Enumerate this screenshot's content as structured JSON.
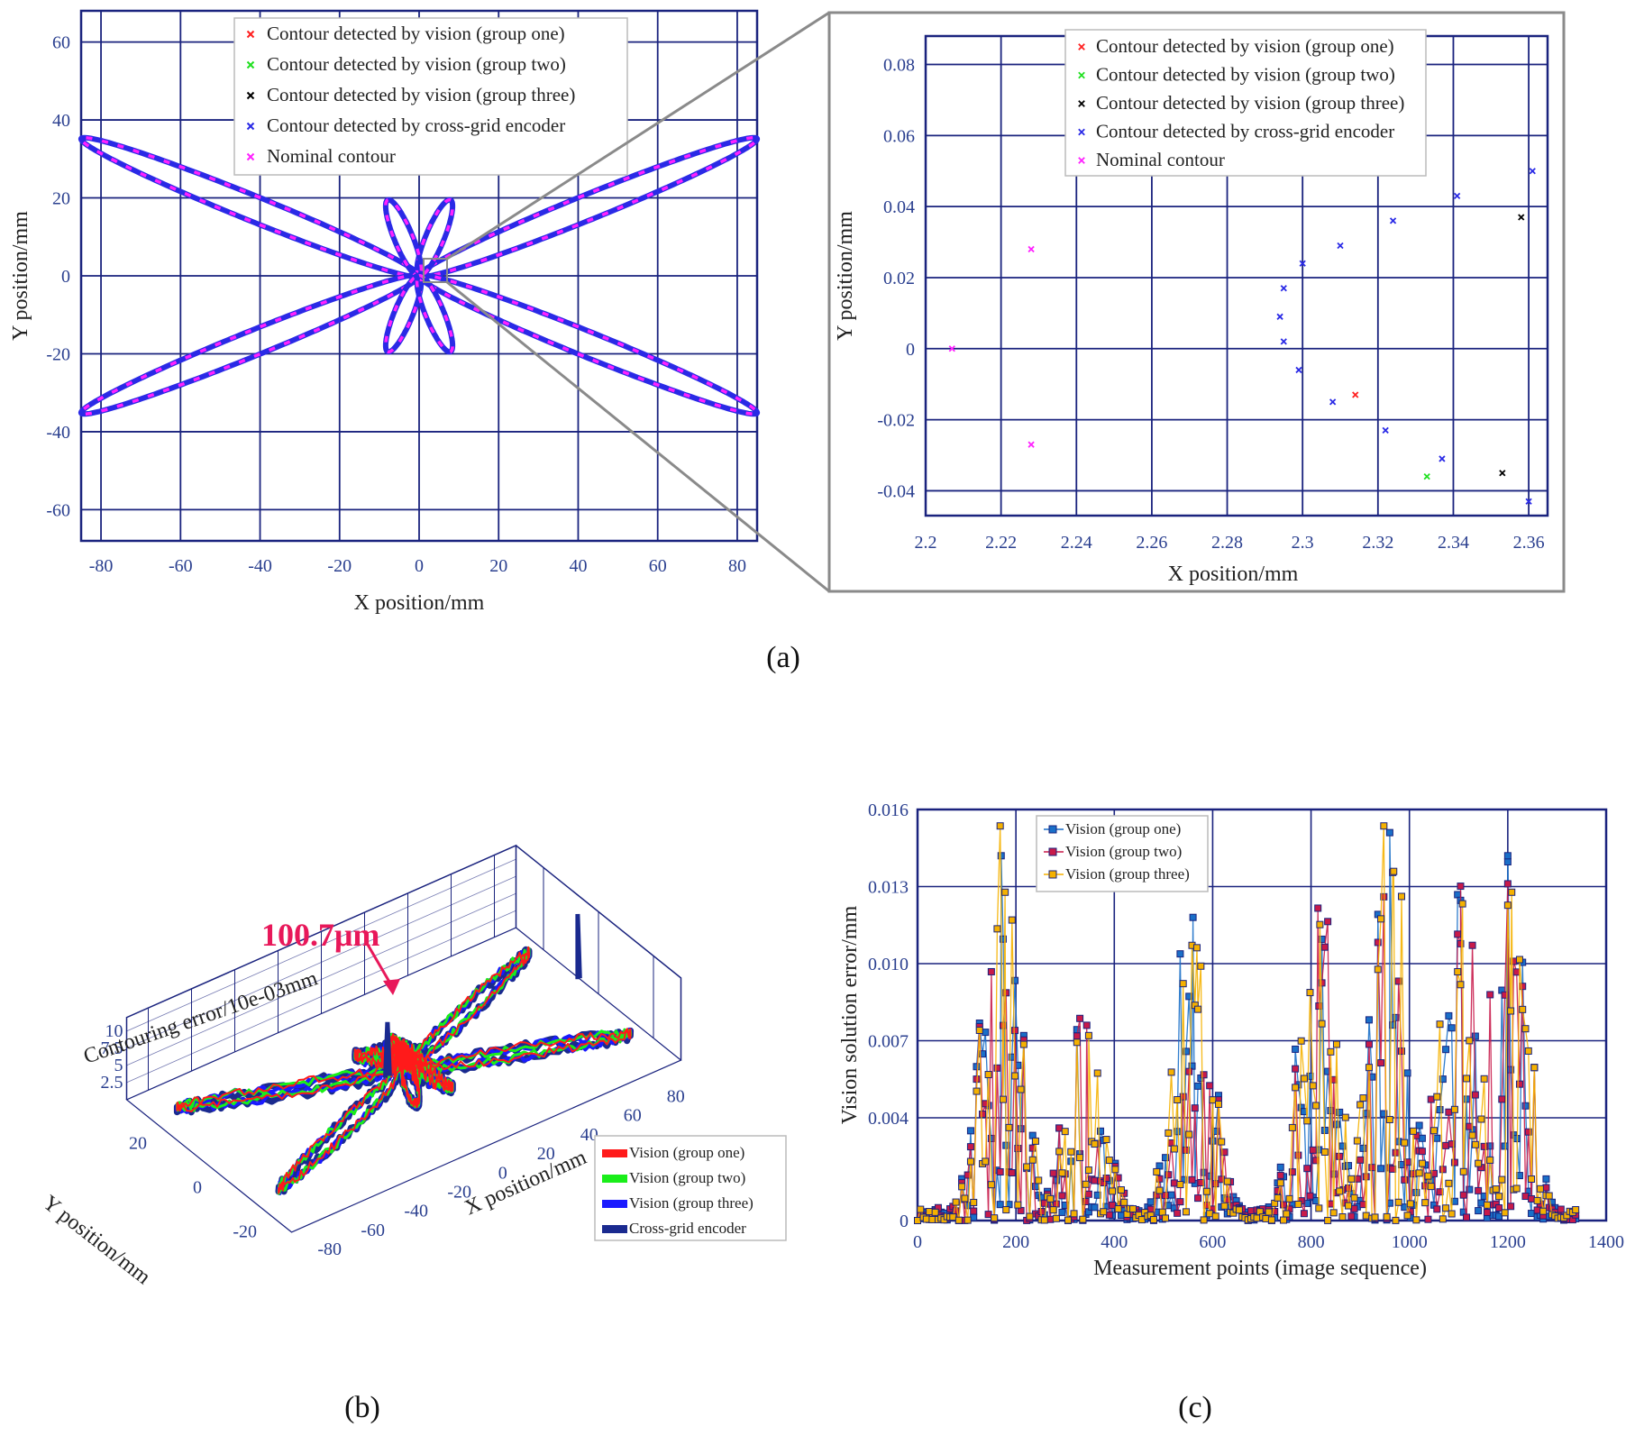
{
  "figure_labels": [
    "(a)",
    "(b)",
    "(c)"
  ],
  "chart_data": [
    {
      "id": "a-main",
      "type": "scatter",
      "title": "",
      "xlabel": "X position/mm",
      "ylabel": "Y position/mm",
      "xlim": [
        -85,
        85
      ],
      "ylim": [
        -68,
        68
      ],
      "xticks": [
        -80,
        -60,
        -40,
        -20,
        0,
        20,
        40,
        60,
        80
      ],
      "yticks": [
        -60,
        -40,
        -20,
        0,
        20,
        40,
        60
      ],
      "xtick_labels": [
        "-80",
        "-60",
        "-40",
        "-20",
        "0",
        "20",
        "40",
        "60",
        "80"
      ],
      "ytick_labels": [
        "-60",
        "-40",
        "-20",
        "0",
        "20",
        "40",
        "60"
      ],
      "grid": true,
      "legend_position": "top-center",
      "series": [
        {
          "name": "Contour detected by vision (group one)",
          "color": "#ff2020",
          "marker": "x"
        },
        {
          "name": "Contour detected by vision (group two)",
          "color": "#20e020",
          "marker": "x"
        },
        {
          "name": "Contour detected by vision (group three)",
          "color": "#000000",
          "marker": "x"
        },
        {
          "name": "Contour detected by cross-grid encoder",
          "color": "#2a2ae6",
          "marker": "x"
        },
        {
          "name": "Nominal contour",
          "color": "#ff22ff",
          "marker": "x"
        }
      ],
      "contour": {
        "description_free": true,
        "large_petals_tips_deg": [
          22.5,
          157.5,
          202.5,
          337.5
        ],
        "large_petal_length": 92,
        "small_petal_angles_deg": [
          68,
          112,
          248,
          292
        ],
        "small_petal_length": 21
      }
    },
    {
      "id": "a-zoom",
      "type": "scatter",
      "xlabel": "X position/mm",
      "ylabel": "Y position/mm",
      "xlim": [
        2.2,
        2.365
      ],
      "ylim": [
        -0.047,
        0.088
      ],
      "xticks": [
        2.2,
        2.22,
        2.24,
        2.26,
        2.28,
        2.3,
        2.32,
        2.34,
        2.36
      ],
      "yticks": [
        -0.04,
        -0.02,
        0,
        0.02,
        0.04,
        0.06,
        0.08
      ],
      "xtick_labels": [
        "2.2",
        "2.22",
        "2.24",
        "2.26",
        "2.28",
        "2.3",
        "2.32",
        "2.34",
        "2.36"
      ],
      "ytick_labels": [
        "-0.04",
        "-0.02",
        "0",
        "0.02",
        "0.04",
        "0.06",
        "0.08"
      ],
      "grid": true,
      "legend_position": "top-center",
      "series": [
        {
          "name": "Contour detected by vision (group one)",
          "color": "#ff2020",
          "points": [
            [
              2.314,
              -0.013
            ]
          ]
        },
        {
          "name": "Contour detected by vision (group two)",
          "color": "#20e020",
          "points": [
            [
              2.333,
              -0.036
            ]
          ]
        },
        {
          "name": "Contour detected by vision (group three)",
          "color": "#000000",
          "points": [
            [
              2.353,
              -0.035
            ],
            [
              2.358,
              0.037
            ]
          ]
        },
        {
          "name": "Contour detected by cross-grid encoder",
          "color": "#2a2ae6",
          "points": [
            [
              2.294,
              0.009
            ],
            [
              2.295,
              0.017
            ],
            [
              2.295,
              0.002
            ],
            [
              2.299,
              -0.006
            ],
            [
              2.3,
              0.024
            ],
            [
              2.308,
              -0.015
            ],
            [
              2.31,
              0.029
            ],
            [
              2.322,
              -0.023
            ],
            [
              2.324,
              0.036
            ],
            [
              2.337,
              -0.031
            ],
            [
              2.341,
              0.043
            ],
            [
              2.36,
              -0.043
            ],
            [
              2.361,
              0.05
            ]
          ]
        },
        {
          "name": "Nominal contour",
          "color": "#ff22ff",
          "points": [
            [
              2.207,
              0.0
            ],
            [
              2.228,
              0.028
            ],
            [
              2.228,
              -0.027
            ]
          ]
        }
      ]
    },
    {
      "id": "b-3d",
      "type": "line",
      "annotation": "100.7μm",
      "xlabel": "X position/mm",
      "ylabel": "Y position/mm",
      "zlabel": "Contouring error/10e-03mm",
      "xtick_labels": [
        "-80",
        "-60",
        "-40",
        "-20",
        "0",
        "20",
        "40",
        "60",
        "80"
      ],
      "ytick_labels": [
        "20",
        "0",
        "-20"
      ],
      "ztick_labels": [
        "10",
        "7.5",
        "5",
        "2.5"
      ],
      "legend_position": "bottom-right",
      "series": [
        {
          "name": "Vision (group one)",
          "color": "#ff1a1a"
        },
        {
          "name": "Vision (group two)",
          "color": "#1aee1a"
        },
        {
          "name": "Vision (group three)",
          "color": "#1a1aff"
        },
        {
          "name": "Cross-grid encoder",
          "color": "#1a2a8f"
        }
      ]
    },
    {
      "id": "c-error",
      "type": "line",
      "xlabel": "Measurement points (image sequence)",
      "ylabel": "Vision solution error/mm",
      "xlim": [
        0,
        1400
      ],
      "ylim": [
        0,
        0.016
      ],
      "xticks": [
        0,
        200,
        400,
        600,
        800,
        1000,
        1200,
        1400
      ],
      "yticks": [
        0,
        0.004,
        0.007,
        0.01,
        0.013,
        0.016
      ],
      "xtick_labels": [
        "0",
        "200",
        "400",
        "600",
        "800",
        "1000",
        "1200",
        "1400"
      ],
      "ytick_labels": [
        "0",
        "0.004",
        "0.007",
        "0.010",
        "0.013",
        "0.016"
      ],
      "grid": true,
      "legend_position": "top-left",
      "peak_clusters": [
        [
          170,
          0.0142
        ],
        [
          340,
          0.008
        ],
        [
          560,
          0.0118
        ],
        [
          810,
          0.0128
        ],
        [
          960,
          0.0151
        ],
        [
          1100,
          0.0137
        ],
        [
          1200,
          0.0142
        ]
      ],
      "series": [
        {
          "name": "Vision (group one)",
          "color": "#1a6fc8"
        },
        {
          "name": "Vision (group two)",
          "color": "#c81a4a"
        },
        {
          "name": "Vision (group three)",
          "color": "#f5b100"
        }
      ]
    }
  ]
}
